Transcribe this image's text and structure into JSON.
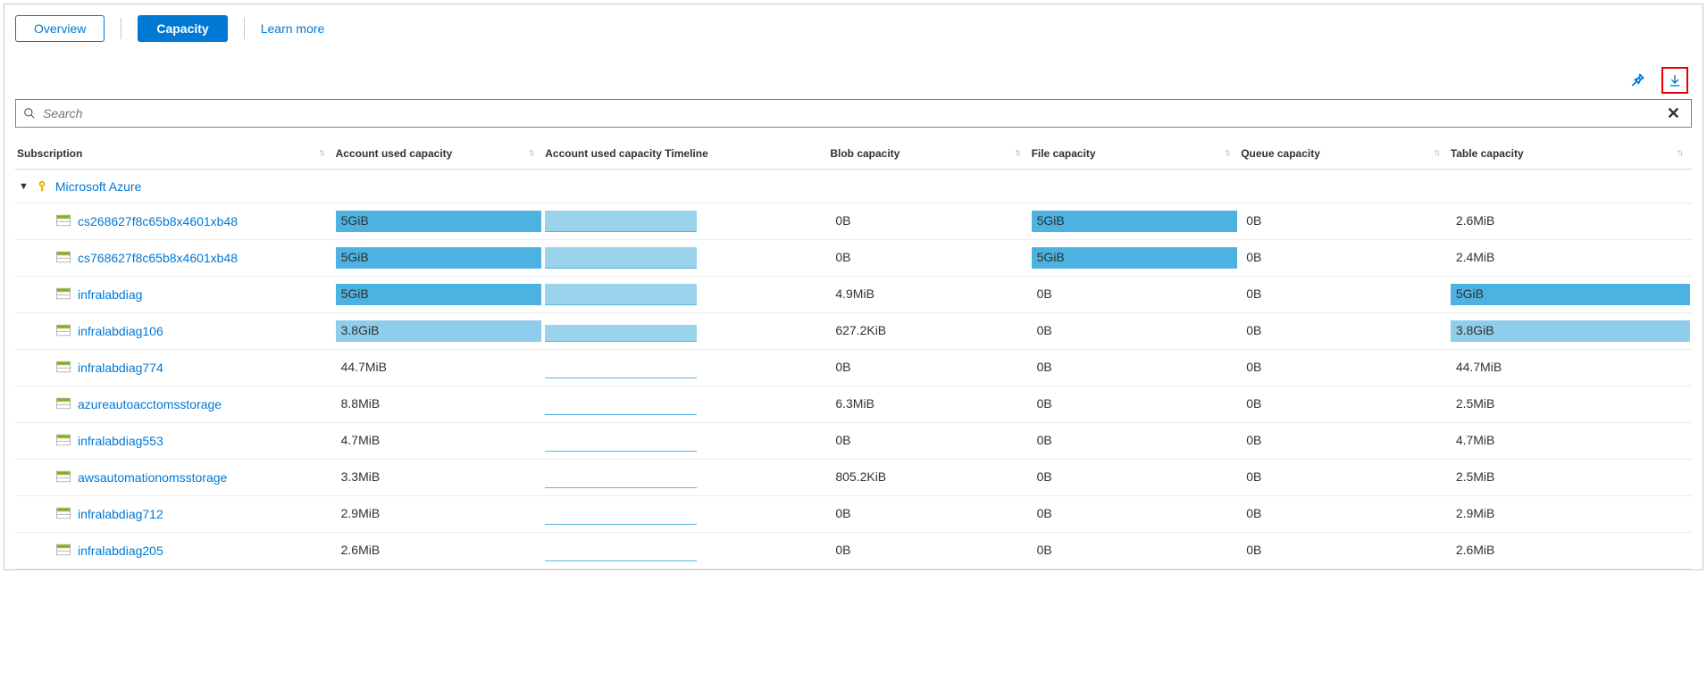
{
  "tabs": {
    "overview": "Overview",
    "capacity": "Capacity",
    "learn_more": "Learn more"
  },
  "search": {
    "placeholder": "Search"
  },
  "columns": {
    "subscription": "Subscription",
    "account_used": "Account used capacity",
    "account_timeline": "Account used capacity Timeline",
    "blob": "Blob capacity",
    "file": "File capacity",
    "queue": "Queue capacity",
    "table": "Table capacity"
  },
  "group": {
    "label": "Microsoft Azure"
  },
  "colors": {
    "bar_dark": "#4cb2e1",
    "bar_light": "#8ecdeb",
    "timeline_fill": "#9bd2ec",
    "timeline_base": "#56b4e2",
    "link": "#0078d4",
    "highlight_border": "#e60000"
  },
  "col_widths": {
    "subscription": "19%",
    "account_used": "12.5%",
    "timeline": "17%",
    "blob": "12%",
    "file": "12.5%",
    "queue": "12.5%",
    "table": "14.5%"
  },
  "max_values": {
    "account_used_bar_pct_per_full": 100,
    "file_bar_pct_per_full": 100,
    "table_bar_pct_per_full": 100
  },
  "rows": [
    {
      "name": "cs268627f8c65b8x4601xb48",
      "account_used": {
        "text": "5GiB",
        "bar_pct": 100,
        "bar_color": "#4cb2e1"
      },
      "timeline": {
        "height_pct": 100
      },
      "blob": {
        "text": "0B",
        "bar_pct": 0
      },
      "file": {
        "text": "5GiB",
        "bar_pct": 100,
        "bar_color": "#4cb2e1"
      },
      "queue": {
        "text": "0B",
        "bar_pct": 0
      },
      "table": {
        "text": "2.6MiB",
        "bar_pct": 0
      }
    },
    {
      "name": "cs768627f8c65b8x4601xb48",
      "account_used": {
        "text": "5GiB",
        "bar_pct": 100,
        "bar_color": "#4cb2e1"
      },
      "timeline": {
        "height_pct": 100
      },
      "blob": {
        "text": "0B",
        "bar_pct": 0
      },
      "file": {
        "text": "5GiB",
        "bar_pct": 100,
        "bar_color": "#4cb2e1"
      },
      "queue": {
        "text": "0B",
        "bar_pct": 0
      },
      "table": {
        "text": "2.4MiB",
        "bar_pct": 0
      }
    },
    {
      "name": "infralabdiag",
      "account_used": {
        "text": "5GiB",
        "bar_pct": 100,
        "bar_color": "#4cb2e1"
      },
      "timeline": {
        "height_pct": 100
      },
      "blob": {
        "text": "4.9MiB",
        "bar_pct": 0
      },
      "file": {
        "text": "0B",
        "bar_pct": 0
      },
      "queue": {
        "text": "0B",
        "bar_pct": 0
      },
      "table": {
        "text": "5GiB",
        "bar_pct": 100,
        "bar_color": "#4cb2e1"
      }
    },
    {
      "name": "infralabdiag106",
      "account_used": {
        "text": "3.8GiB",
        "bar_pct": 100,
        "bar_color": "#8ecdeb"
      },
      "timeline": {
        "height_pct": 80
      },
      "blob": {
        "text": "627.2KiB",
        "bar_pct": 0
      },
      "file": {
        "text": "0B",
        "bar_pct": 0
      },
      "queue": {
        "text": "0B",
        "bar_pct": 0
      },
      "table": {
        "text": "3.8GiB",
        "bar_pct": 100,
        "bar_color": "#8ecdeb"
      }
    },
    {
      "name": "infralabdiag774",
      "account_used": {
        "text": "44.7MiB",
        "bar_pct": 0
      },
      "timeline": {
        "height_pct": 6
      },
      "blob": {
        "text": "0B",
        "bar_pct": 0
      },
      "file": {
        "text": "0B",
        "bar_pct": 0
      },
      "queue": {
        "text": "0B",
        "bar_pct": 0
      },
      "table": {
        "text": "44.7MiB",
        "bar_pct": 0
      }
    },
    {
      "name": "azureautoacctomsstorage",
      "account_used": {
        "text": "8.8MiB",
        "bar_pct": 0
      },
      "timeline": {
        "height_pct": 5
      },
      "blob": {
        "text": "6.3MiB",
        "bar_pct": 0
      },
      "file": {
        "text": "0B",
        "bar_pct": 0
      },
      "queue": {
        "text": "0B",
        "bar_pct": 0
      },
      "table": {
        "text": "2.5MiB",
        "bar_pct": 0
      }
    },
    {
      "name": "infralabdiag553",
      "account_used": {
        "text": "4.7MiB",
        "bar_pct": 0
      },
      "timeline": {
        "height_pct": 5
      },
      "blob": {
        "text": "0B",
        "bar_pct": 0
      },
      "file": {
        "text": "0B",
        "bar_pct": 0
      },
      "queue": {
        "text": "0B",
        "bar_pct": 0
      },
      "table": {
        "text": "4.7MiB",
        "bar_pct": 0
      }
    },
    {
      "name": "awsautomationomsstorage",
      "account_used": {
        "text": "3.3MiB",
        "bar_pct": 0
      },
      "timeline": {
        "height_pct": 5
      },
      "blob": {
        "text": "805.2KiB",
        "bar_pct": 0
      },
      "file": {
        "text": "0B",
        "bar_pct": 0
      },
      "queue": {
        "text": "0B",
        "bar_pct": 0
      },
      "table": {
        "text": "2.5MiB",
        "bar_pct": 0
      }
    },
    {
      "name": "infralabdiag712",
      "account_used": {
        "text": "2.9MiB",
        "bar_pct": 0
      },
      "timeline": {
        "height_pct": 5
      },
      "blob": {
        "text": "0B",
        "bar_pct": 0
      },
      "file": {
        "text": "0B",
        "bar_pct": 0
      },
      "queue": {
        "text": "0B",
        "bar_pct": 0
      },
      "table": {
        "text": "2.9MiB",
        "bar_pct": 0
      }
    },
    {
      "name": "infralabdiag205",
      "account_used": {
        "text": "2.6MiB",
        "bar_pct": 0
      },
      "timeline": {
        "height_pct": 5
      },
      "blob": {
        "text": "0B",
        "bar_pct": 0
      },
      "file": {
        "text": "0B",
        "bar_pct": 0
      },
      "queue": {
        "text": "0B",
        "bar_pct": 0
      },
      "table": {
        "text": "2.6MiB",
        "bar_pct": 0
      }
    }
  ]
}
